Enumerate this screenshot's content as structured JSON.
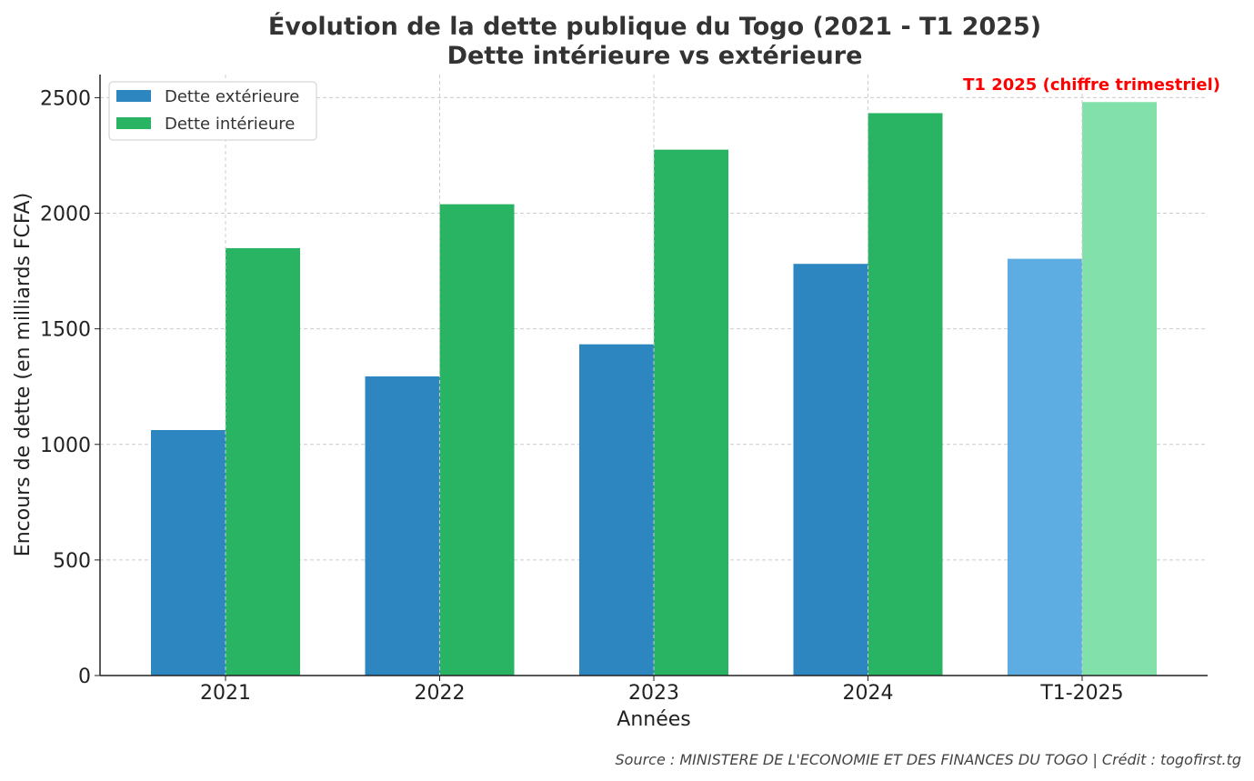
{
  "chart_data": {
    "type": "bar",
    "title": "Évolution de la dette publique du Togo (2021 - T1 2025)",
    "subtitle": "Dette intérieure vs extérieure",
    "xlabel": "Années",
    "ylabel": "Encours de dette (en milliards FCFA)",
    "categories": [
      "2021",
      "2022",
      "2023",
      "2024",
      "T1-2025"
    ],
    "series": [
      {
        "name": "Dette extérieure",
        "color": "#2e86c1",
        "highlight_color": "#5dade2",
        "values": [
          1062,
          1294,
          1433,
          1781,
          1803
        ]
      },
      {
        "name": "Dette intérieure",
        "color": "#28b463",
        "highlight_color": "#82e0aa",
        "values": [
          1849,
          2039,
          2275,
          2433,
          2481
        ]
      }
    ],
    "highlight_category": "T1-2025",
    "ylim": [
      0,
      2600
    ],
    "yticks": [
      0,
      500,
      1000,
      1500,
      2000,
      2500
    ],
    "grid": true,
    "legend_position": "top-left",
    "annotation": "T1 2025 (chiffre trimestriel)"
  },
  "footer": {
    "source": "Source : MINISTERE DE L'ECONOMIE ET DES FINANCES DU TOGO | Crédit : togofirst.tg"
  }
}
